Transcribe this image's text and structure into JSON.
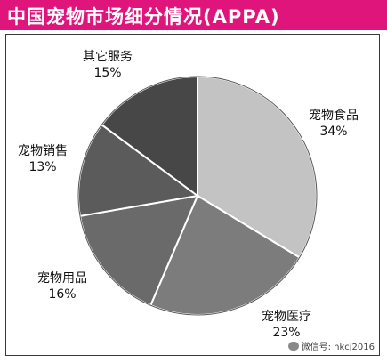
{
  "title": "中国宠物市场细分情况(APPA)",
  "watermark": "微信号: hkcj2016",
  "colors": {
    "title_bar": "#e0157c",
    "title_text": "#ffffff"
  },
  "chart_data": {
    "type": "pie",
    "title": "中国宠物市场细分情况(APPA)",
    "slices": [
      {
        "label": "宠物食品",
        "value": 34,
        "display": "34%",
        "color": "#c3c3c3"
      },
      {
        "label": "宠物医疗",
        "value": 23,
        "display": "23%",
        "color": "#7c7c7c"
      },
      {
        "label": "宠物用品",
        "value": 16,
        "display": "16%",
        "color": "#6a6a6a"
      },
      {
        "label": "宠物销售",
        "value": 13,
        "display": "13%",
        "color": "#5b5b5b"
      },
      {
        "label": "其它服务",
        "value": 15,
        "display": "15%",
        "color": "#474747"
      }
    ],
    "start": "12 o'clock",
    "direction": "clockwise",
    "legend": "none (data labels outside slices)"
  }
}
